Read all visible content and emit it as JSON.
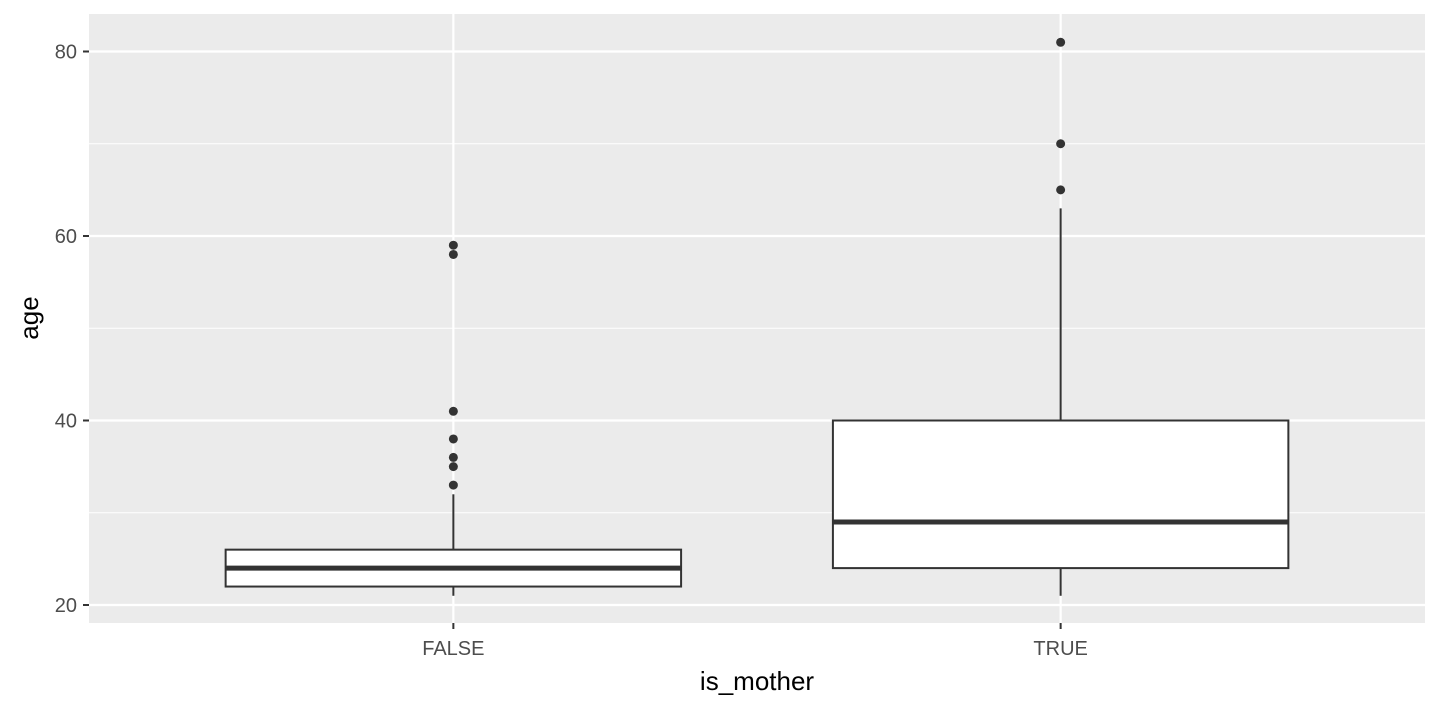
{
  "chart_data": {
    "type": "boxplot",
    "title": "",
    "xlabel": "is_mother",
    "ylabel": "age",
    "ylim": [
      18,
      84
    ],
    "yticks": [
      20,
      40,
      60,
      80
    ],
    "categories": [
      "FALSE",
      "TRUE"
    ],
    "boxes": [
      {
        "category": "FALSE",
        "lower_whisker": 21,
        "q1": 22,
        "median": 24,
        "q3": 26,
        "upper_whisker": 32,
        "outliers": [
          33,
          35,
          36,
          38,
          41,
          58,
          59
        ]
      },
      {
        "category": "TRUE",
        "lower_whisker": 21,
        "q1": 24,
        "median": 29,
        "q3": 40,
        "upper_whisker": 63,
        "outliers": [
          65,
          70,
          81
        ]
      }
    ],
    "grid": true,
    "colors": {
      "panel": "#ebebeb",
      "grid": "#ffffff",
      "box_fill": "#ffffff",
      "box_line": "#333333",
      "tick_text": "#4d4d4d"
    }
  }
}
